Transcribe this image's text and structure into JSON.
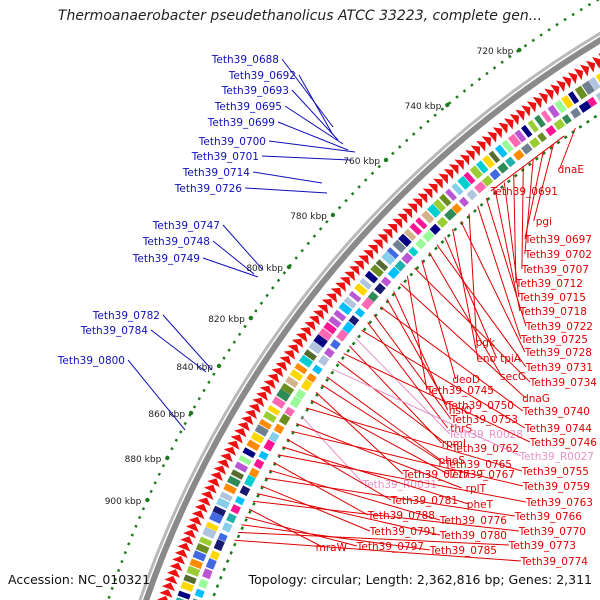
{
  "title": "Thermoanaerobacter pseudethanolicus ATCC 33223, complete gen...",
  "footer": {
    "accession": "Accession: NC_010321",
    "summary": "Topology: circular; Length: 2,362,816 bp; Genes: 2,311"
  },
  "colors": {
    "forward_label": "#1010b8",
    "reverse_label": "#e00000",
    "rna_label": "#e890c8",
    "ruler": "#1c7a1c",
    "backbone": "#8a8a8a",
    "arrow": "#ee1010"
  },
  "kbp_ticks": [
    {
      "label": "720 kbp",
      "kbp": 720
    },
    {
      "label": "740 kbp",
      "kbp": 740
    },
    {
      "label": "760 kbp",
      "kbp": 760
    },
    {
      "label": "780 kbp",
      "kbp": 780
    },
    {
      "label": "800 kbp",
      "kbp": 800
    },
    {
      "label": "820 kbp",
      "kbp": 820
    },
    {
      "label": "840 kbp",
      "kbp": 840
    },
    {
      "label": "860 kbp",
      "kbp": 860
    },
    {
      "label": "880 kbp",
      "kbp": 880
    },
    {
      "label": "900 kbp",
      "kbp": 900
    }
  ],
  "forward_genes": [
    "Teth39_0688",
    "Teth39_0692",
    "Teth39_0693",
    "Teth39_0695",
    "Teth39_0699",
    "Teth39_0700",
    "Teth39_0701",
    "Teth39_0714",
    "Teth39_0726",
    "Teth39_0747",
    "Teth39_0748",
    "Teth39_0749",
    "Teth39_0782",
    "Teth39_0784",
    "Teth39_0800"
  ],
  "reverse_genes": [
    {
      "name": "dnaE",
      "rna": false
    },
    {
      "name": "Teth39_0691",
      "rna": false
    },
    {
      "name": "pgi",
      "rna": false
    },
    {
      "name": "Teth39_0697",
      "rna": false
    },
    {
      "name": "Teth39_0702",
      "rna": false
    },
    {
      "name": "Teth39_0707",
      "rna": false
    },
    {
      "name": "Teth39_0712",
      "rna": false
    },
    {
      "name": "Teth39_0715",
      "rna": false
    },
    {
      "name": "Teth39_0718",
      "rna": false
    },
    {
      "name": "Teth39_0722",
      "rna": false
    },
    {
      "name": "Teth39_0725",
      "rna": false
    },
    {
      "name": "pgk",
      "rna": false
    },
    {
      "name": "Teth39_0728",
      "rna": false
    },
    {
      "name": "eno",
      "rna": false
    },
    {
      "name": "tpiA",
      "rna": false
    },
    {
      "name": "Teth39_0731",
      "rna": false
    },
    {
      "name": "secG",
      "rna": false
    },
    {
      "name": "deoD",
      "rna": false
    },
    {
      "name": "Teth39_0734",
      "rna": false
    },
    {
      "name": "Teth39_0745",
      "rna": false
    },
    {
      "name": "dnaG",
      "rna": false
    },
    {
      "name": "hslO",
      "rna": false
    },
    {
      "name": "Teth39_0750",
      "rna": false
    },
    {
      "name": "Teth39_0740",
      "rna": false
    },
    {
      "name": "Teth39_0753",
      "rna": false
    },
    {
      "name": "thrS",
      "rna": false
    },
    {
      "name": "Teth39_0744",
      "rna": false
    },
    {
      "name": "Teth39_R0028",
      "rna": true
    },
    {
      "name": "rpmI",
      "rna": false
    },
    {
      "name": "Teth39_0746",
      "rna": false
    },
    {
      "name": "Teth39_0762",
      "rna": false
    },
    {
      "name": "Teth39_R0027",
      "rna": true
    },
    {
      "name": "pheS",
      "rna": false
    },
    {
      "name": "Teth39_0765",
      "rna": false
    },
    {
      "name": "Teth39_0777",
      "rna": false
    },
    {
      "name": "Teth39_0767",
      "rna": false
    },
    {
      "name": "Teth39_0755",
      "rna": false
    },
    {
      "name": "Teth39_R0031",
      "rna": true
    },
    {
      "name": "rplT",
      "rna": false
    },
    {
      "name": "Teth39_0759",
      "rna": false
    },
    {
      "name": "Teth39_0781",
      "rna": false
    },
    {
      "name": "pheT",
      "rna": false
    },
    {
      "name": "Teth39_0763",
      "rna": false
    },
    {
      "name": "Teth39_0788",
      "rna": false
    },
    {
      "name": "Teth39_0776",
      "rna": false
    },
    {
      "name": "Teth39_0766",
      "rna": false
    },
    {
      "name": "Teth39_0791",
      "rna": false
    },
    {
      "name": "Teth39_0780",
      "rna": false
    },
    {
      "name": "Teth39_0770",
      "rna": false
    },
    {
      "name": "mraW",
      "rna": false
    },
    {
      "name": "Teth39_0797",
      "rna": false
    },
    {
      "name": "Teth39_0785",
      "rna": false
    },
    {
      "name": "Teth39_0773",
      "rna": false
    },
    {
      "name": "Teth39_0774",
      "rna": false
    }
  ]
}
